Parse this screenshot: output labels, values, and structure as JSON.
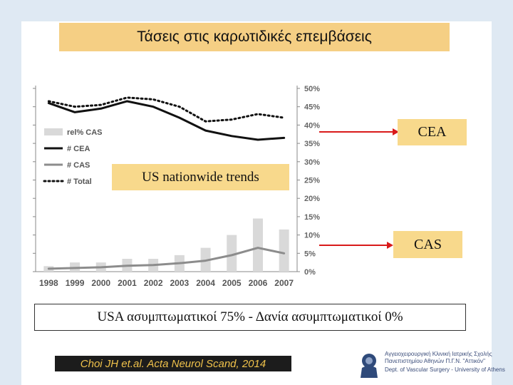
{
  "title": "Τάσεις στις καρωτιδικές επεμβάσεις",
  "callouts": {
    "cea": "CEA",
    "cas": "CAS",
    "trends": "US nationwide trends"
  },
  "note": "USA ασυμπτωματικοί 75% - Δανία ασυμπτωματικοί 0%",
  "citation": "Choi JH et.al. Acta Neurol Scand, 2014",
  "logo": {
    "line1": "Αγγειοχειρουργική Κλινική Ιατρικής Σχολής",
    "line2": "Πανεπιστημίου Αθηνών Π.Γ.Ν. \"Αττικόν\"",
    "line3": "Dept. of Vascular Surgery - University of Athens"
  },
  "colors": {
    "title_bg": "#f5cf84",
    "callout_bg": "#f8d98c",
    "arrow": "#d91a1a",
    "bar": "#d9d9d9",
    "cea_line": "#111111",
    "cas_line": "#8c8c8c",
    "total_line": "#111111"
  },
  "chart_data": {
    "type": "bar",
    "categories": [
      "1998",
      "1999",
      "2000",
      "2001",
      "2002",
      "2003",
      "2004",
      "2005",
      "2006",
      "2007"
    ],
    "y2_ticks": [
      "0%",
      "5%",
      "10%",
      "15%",
      "20%",
      "25%",
      "30%",
      "35%",
      "40%",
      "45%",
      "50%"
    ],
    "ylim_right": [
      0,
      50
    ],
    "legend": [
      "rel% CAS",
      "# CEA",
      "# CAS",
      "# Total"
    ],
    "legend_position": "left",
    "grid": false,
    "series": [
      {
        "name": "rel% CAS",
        "kind": "bar",
        "values": [
          1.5,
          2.5,
          2.5,
          3.5,
          3.5,
          4.5,
          6.5,
          10,
          14.5,
          11.5
        ]
      },
      {
        "name": "# CEA",
        "kind": "line",
        "values": [
          46,
          43.5,
          44.5,
          46.5,
          45,
          42,
          38.5,
          37,
          36,
          36.5
        ]
      },
      {
        "name": "# CAS",
        "kind": "line",
        "values": [
          0.8,
          1,
          1.2,
          1.6,
          1.8,
          2.3,
          3,
          4.5,
          6.5,
          5
        ]
      },
      {
        "name": "# Total",
        "kind": "dotted-line",
        "values": [
          46.5,
          45,
          45.5,
          47.5,
          47,
          45,
          41,
          41.5,
          43,
          42
        ]
      }
    ]
  }
}
